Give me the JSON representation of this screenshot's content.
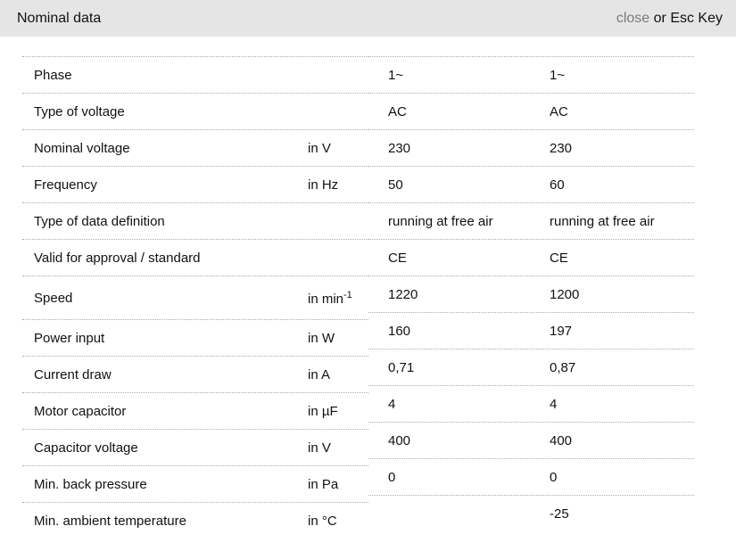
{
  "header": {
    "title": "Nominal data",
    "close_label": "close",
    "close_hint": "or Esc Key"
  },
  "colors": {
    "header_bg": "#e5e5e5",
    "close_link": "#7a7a7a",
    "divider_dotted": "#ababab",
    "text": "#111111",
    "background": "#ffffff"
  },
  "table": {
    "rows": [
      {
        "label": "Phase",
        "unit": "",
        "unit_sup": "",
        "values": [
          "1~",
          "1~"
        ]
      },
      {
        "label": "Type of voltage",
        "unit": "",
        "unit_sup": "",
        "values": [
          "AC",
          "AC"
        ]
      },
      {
        "label": "Nominal voltage",
        "unit": "in V",
        "unit_sup": "",
        "values": [
          "230",
          "230"
        ]
      },
      {
        "label": "Frequency",
        "unit": "in Hz",
        "unit_sup": "",
        "values": [
          "50",
          "60"
        ]
      },
      {
        "label": "Type of data definition",
        "unit": "",
        "unit_sup": "",
        "values": [
          "running at free air",
          "running at free air"
        ]
      },
      {
        "label": "Valid for approval / standard",
        "unit": "",
        "unit_sup": "",
        "values": [
          "CE",
          "CE"
        ]
      },
      {
        "label": "Speed",
        "unit": "in min",
        "unit_sup": "-1",
        "values": [
          "1220",
          "1200"
        ]
      },
      {
        "label": "Power input",
        "unit": "in W",
        "unit_sup": "",
        "values": [
          "160",
          "197"
        ]
      },
      {
        "label": "Current draw",
        "unit": "in A",
        "unit_sup": "",
        "values": [
          "0,71",
          "0,87"
        ]
      },
      {
        "label": "Motor capacitor",
        "unit": "in µF",
        "unit_sup": "",
        "values": [
          "4",
          "4"
        ]
      },
      {
        "label": "Capacitor voltage",
        "unit": "in V",
        "unit_sup": "",
        "values": [
          "400",
          "400"
        ]
      },
      {
        "label": "Min. back pressure",
        "unit": "in Pa",
        "unit_sup": "",
        "values": [
          "0",
          "0"
        ]
      },
      {
        "label": "Min. ambient temperature",
        "unit": "in °C",
        "unit_sup": "",
        "values": [
          "",
          "-25"
        ]
      }
    ]
  }
}
